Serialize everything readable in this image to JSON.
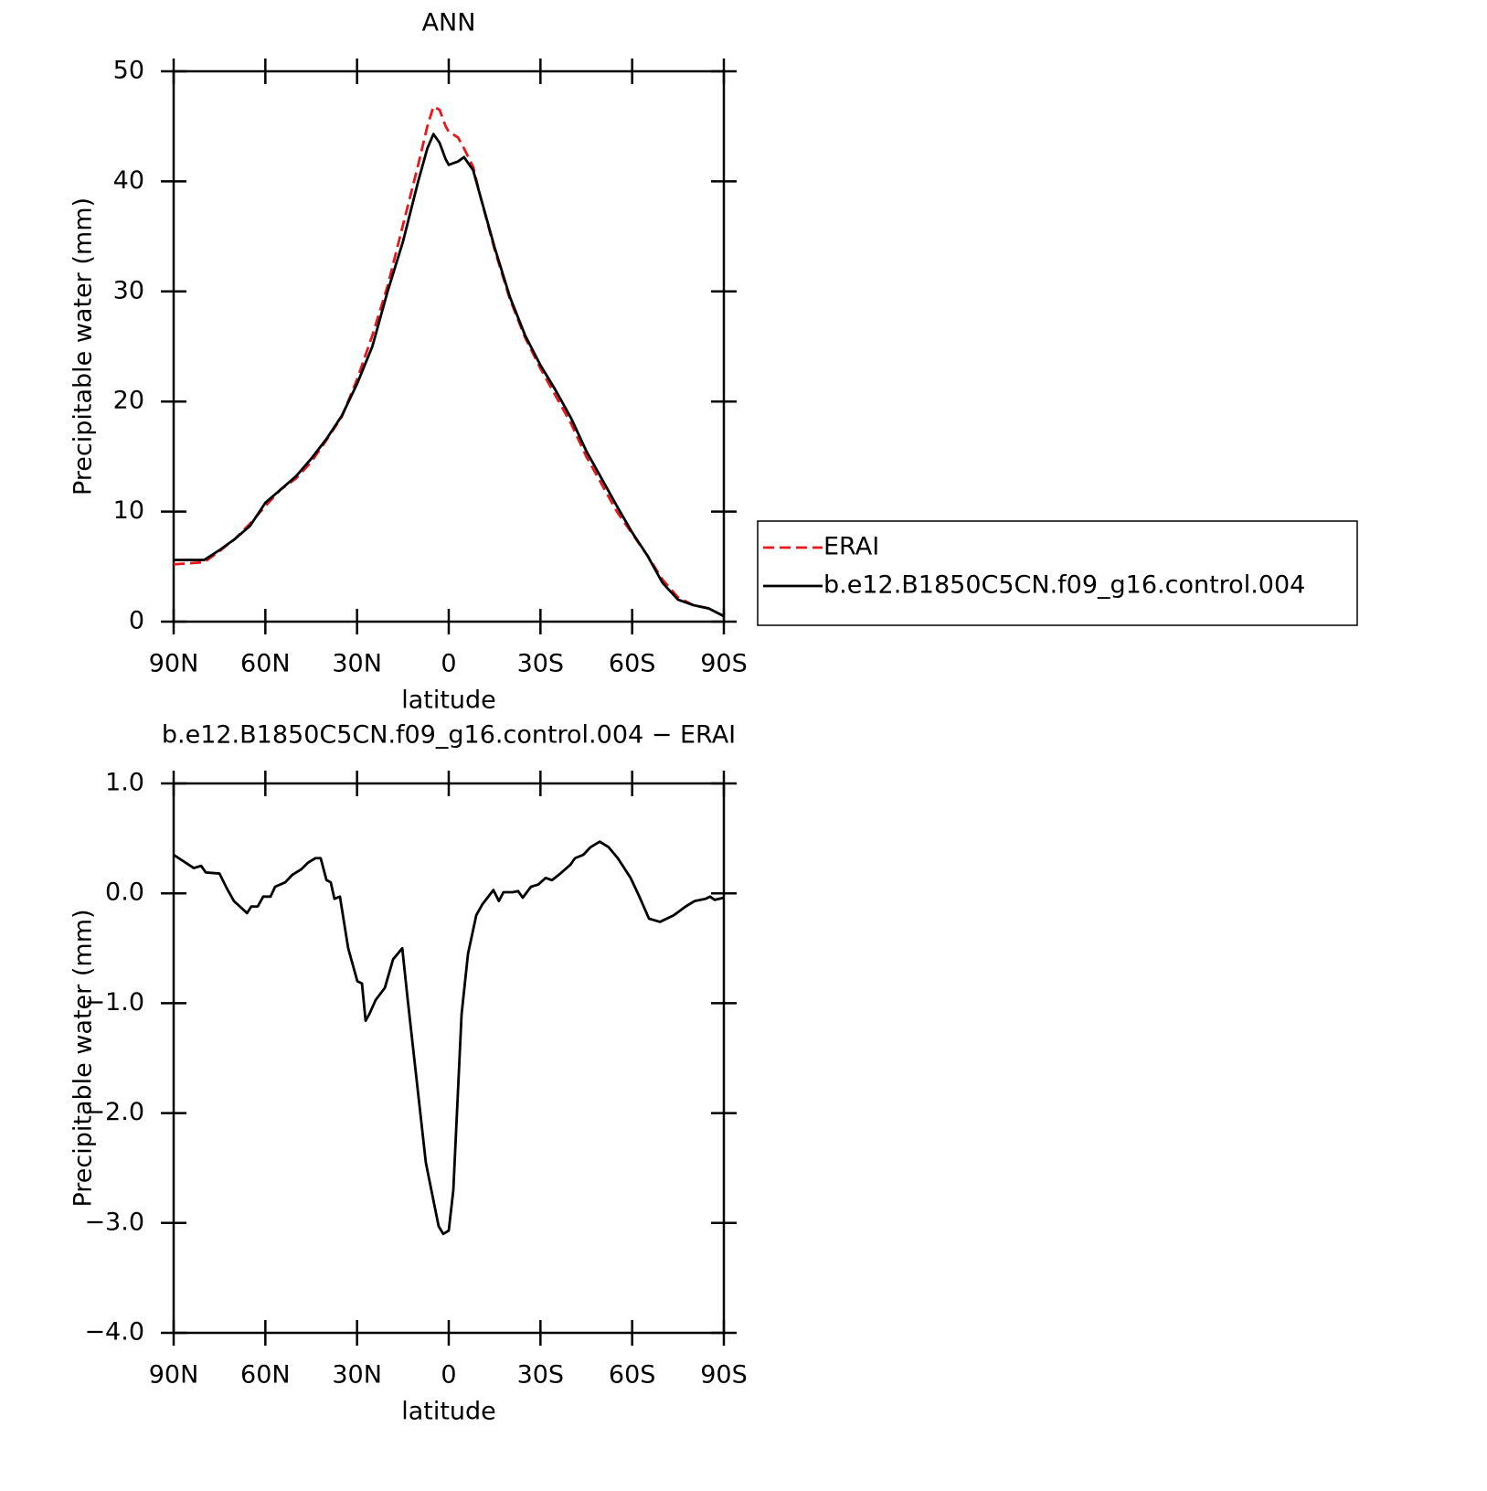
{
  "chart_data": [
    {
      "type": "line",
      "title": "ANN",
      "xlabel": "latitude",
      "ylabel": "Precipitable water (mm)",
      "xlim": [
        90,
        -90
      ],
      "xticks": [
        {
          "value": 90,
          "label": "90N"
        },
        {
          "value": 60,
          "label": "60N"
        },
        {
          "value": 30,
          "label": "30N"
        },
        0,
        {
          "value": -30,
          "label": "30S"
        },
        {
          "value": -60,
          "label": "60S"
        },
        {
          "value": -90,
          "label": "90S"
        }
      ],
      "ylim": [
        0,
        50
      ],
      "yticks": [
        0,
        10,
        20,
        30,
        40,
        50
      ],
      "legend": "right",
      "series": [
        {
          "name": "ERAI",
          "color": "#e8171b",
          "line_style": "dashed",
          "x": [
            90,
            85,
            80,
            75,
            70,
            65,
            60,
            55,
            50,
            45,
            40,
            35,
            30,
            25,
            20,
            15,
            10,
            7,
            5,
            3,
            1,
            0,
            -3,
            -5,
            -8,
            -10,
            -15,
            -20,
            -25,
            -30,
            -35,
            -40,
            -45,
            -50,
            -55,
            -60,
            -65,
            -70,
            -75,
            -80,
            -85,
            -90
          ],
          "values": [
            5.2,
            5.3,
            5.4,
            6.4,
            7.5,
            8.9,
            10.5,
            12,
            13,
            14.5,
            16.5,
            18.6,
            22,
            26,
            30.5,
            36,
            41.5,
            45,
            46.8,
            46.5,
            45,
            44.5,
            44,
            43,
            41.3,
            39,
            33.8,
            29.3,
            25.8,
            23,
            20.5,
            18,
            15,
            12.5,
            10,
            8,
            6,
            3.8,
            2.2,
            1.5,
            1.2,
            0.5
          ]
        },
        {
          "name": "b.e12.B1850C5CN.f09_g16.control.004",
          "color": "#000000",
          "line_style": "solid",
          "x": [
            90,
            85,
            80,
            75,
            70,
            65,
            60,
            55,
            50,
            45,
            40,
            35,
            30,
            25,
            20,
            15,
            10,
            7,
            5,
            3,
            1,
            0,
            -3,
            -5,
            -8,
            -10,
            -15,
            -20,
            -25,
            -30,
            -35,
            -40,
            -45,
            -50,
            -55,
            -60,
            -65,
            -70,
            -75,
            -80,
            -85,
            -90
          ],
          "values": [
            5.6,
            5.6,
            5.6,
            6.5,
            7.5,
            8.7,
            10.8,
            12,
            13.2,
            14.8,
            16.6,
            18.7,
            21.6,
            25,
            30,
            34.5,
            40,
            43,
            44.3,
            43.5,
            42,
            41.5,
            41.8,
            42.2,
            41,
            39,
            34,
            29.5,
            26,
            23.3,
            21,
            18.5,
            15.5,
            13,
            10.5,
            8.1,
            6,
            3.5,
            2,
            1.5,
            1.2,
            0.5
          ]
        }
      ]
    },
    {
      "type": "line",
      "title": "b.e12.B1850C5CN.f09_g16.control.004 − ERAI",
      "xlabel": "latitude",
      "ylabel": "Precipitable water (mm)",
      "xlim": [
        90,
        -90
      ],
      "xticks": [
        {
          "value": 90,
          "label": "90N"
        },
        {
          "value": 60,
          "label": "60N"
        },
        {
          "value": 30,
          "label": "30N"
        },
        0,
        {
          "value": -30,
          "label": "30S"
        },
        {
          "value": -60,
          "label": "60S"
        },
        {
          "value": -90,
          "label": "90S"
        }
      ],
      "ylim": [
        -4,
        1
      ],
      "yticks": [
        {
          "value": -4,
          "label": "−4.0"
        },
        {
          "value": -3,
          "label": "−3.0"
        },
        {
          "value": -2,
          "label": "−2.0"
        },
        {
          "value": -1,
          "label": "−1.0"
        },
        {
          "value": 0,
          "label": "0.0"
        },
        {
          "value": 1,
          "label": "1.0"
        }
      ],
      "series": [
        {
          "color": "#000000",
          "line_style": "solid",
          "x": [
            90,
            83.4,
            81,
            79.5,
            75,
            72.7,
            70.3,
            66,
            64.6,
            62.5,
            60.7,
            58.3,
            56.8,
            53.5,
            51.1,
            48.2,
            46,
            43.6,
            41.9,
            40,
            38.6,
            37.4,
            35.6,
            32.9,
            29.9,
            28.4,
            27.2,
            26,
            23.9,
            20.9,
            18.2,
            15.2,
            13.5,
            10.5,
            7.5,
            5.7,
            3.3,
            1.8,
            0,
            -1.5,
            -4.2,
            -6.3,
            -9,
            -11,
            -14.6,
            -16.4,
            -17.9,
            -20.9,
            -22.7,
            -24.2,
            -26.9,
            -29.3,
            -31.7,
            -33.8,
            -36.5,
            -39.8,
            -41.3,
            -44,
            -46.4,
            -49.4,
            -52.3,
            -55.3,
            -59.5,
            -62.2,
            -65.5,
            -69.1,
            -73.6,
            -77.5,
            -80.5,
            -84,
            -85.5,
            -87,
            -90
          ],
          "values": [
            0.35,
            0.23,
            0.25,
            0.19,
            0.18,
            0.05,
            -0.07,
            -0.18,
            -0.12,
            -0.12,
            -0.03,
            -0.03,
            0.06,
            0.1,
            0.17,
            0.22,
            0.28,
            0.32,
            0.32,
            0.12,
            0.1,
            -0.05,
            -0.03,
            -0.5,
            -0.8,
            -0.82,
            -1.16,
            -1.1,
            -0.97,
            -0.86,
            -0.6,
            -0.5,
            -0.95,
            -1.7,
            -2.45,
            -2.7,
            -3.03,
            -3.1,
            -3.07,
            -2.7,
            -1.1,
            -0.55,
            -0.2,
            -0.1,
            0.03,
            -0.07,
            0.01,
            0.01,
            0.02,
            -0.04,
            0.06,
            0.08,
            0.14,
            0.12,
            0.18,
            0.26,
            0.32,
            0.35,
            0.42,
            0.47,
            0.42,
            0.32,
            0.14,
            -0.02,
            -0.23,
            -0.26,
            -0.2,
            -0.12,
            -0.07,
            -0.05,
            -0.03,
            -0.06,
            -0.04
          ]
        }
      ]
    }
  ]
}
